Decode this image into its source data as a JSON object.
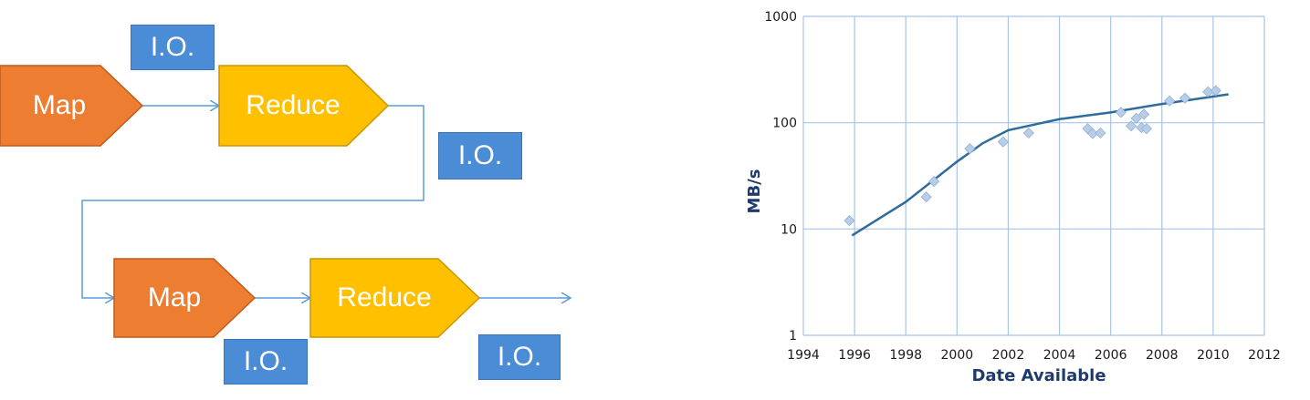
{
  "diagram": {
    "colors": {
      "map": "#ed7d31",
      "reduce": "#ffc000",
      "io": "#4a8cd6",
      "arrow": "#5b9bd5"
    },
    "row1": {
      "map_label": "Map",
      "reduce_label": "Reduce"
    },
    "row2": {
      "map_label": "Map",
      "reduce_label": "Reduce"
    },
    "io_labels": [
      "I.O.",
      "I.O.",
      "I.O.",
      "I.O."
    ]
  },
  "chart_data": {
    "type": "scatter",
    "title": "",
    "xlabel": "Date Available",
    "ylabel": "MB/s",
    "xlim": [
      1994,
      2012
    ],
    "ylim": [
      1,
      1000
    ],
    "yscale": "log",
    "x_ticks": [
      1994,
      1996,
      1998,
      2000,
      2002,
      2004,
      2006,
      2008,
      2010,
      2012
    ],
    "y_ticks": [
      1,
      10,
      100,
      1000
    ],
    "grid": true,
    "legend": "none",
    "colors": {
      "points": "#b9cde6",
      "trend": "#2f6c9e",
      "grid": "#a9c4e4"
    },
    "points": [
      {
        "x": 1995.8,
        "y": 12
      },
      {
        "x": 1998.8,
        "y": 20
      },
      {
        "x": 1999.1,
        "y": 28
      },
      {
        "x": 2000.5,
        "y": 57
      },
      {
        "x": 2001.8,
        "y": 66
      },
      {
        "x": 2002.8,
        "y": 80
      },
      {
        "x": 2005.1,
        "y": 88
      },
      {
        "x": 2005.3,
        "y": 79
      },
      {
        "x": 2005.6,
        "y": 80
      },
      {
        "x": 2006.4,
        "y": 125
      },
      {
        "x": 2006.8,
        "y": 93
      },
      {
        "x": 2007.0,
        "y": 110
      },
      {
        "x": 2007.2,
        "y": 90
      },
      {
        "x": 2007.3,
        "y": 120
      },
      {
        "x": 2007.4,
        "y": 88
      },
      {
        "x": 2008.3,
        "y": 160
      },
      {
        "x": 2008.9,
        "y": 170
      },
      {
        "x": 2009.8,
        "y": 195
      },
      {
        "x": 2010.1,
        "y": 200
      }
    ],
    "trend": [
      {
        "x": 1995.9,
        "y": 8.7
      },
      {
        "x": 1998.0,
        "y": 18
      },
      {
        "x": 2000.0,
        "y": 43
      },
      {
        "x": 2001.0,
        "y": 64
      },
      {
        "x": 2002.0,
        "y": 85
      },
      {
        "x": 2004.0,
        "y": 108
      },
      {
        "x": 2006.0,
        "y": 125
      },
      {
        "x": 2008.0,
        "y": 150
      },
      {
        "x": 2010.6,
        "y": 185
      }
    ]
  }
}
